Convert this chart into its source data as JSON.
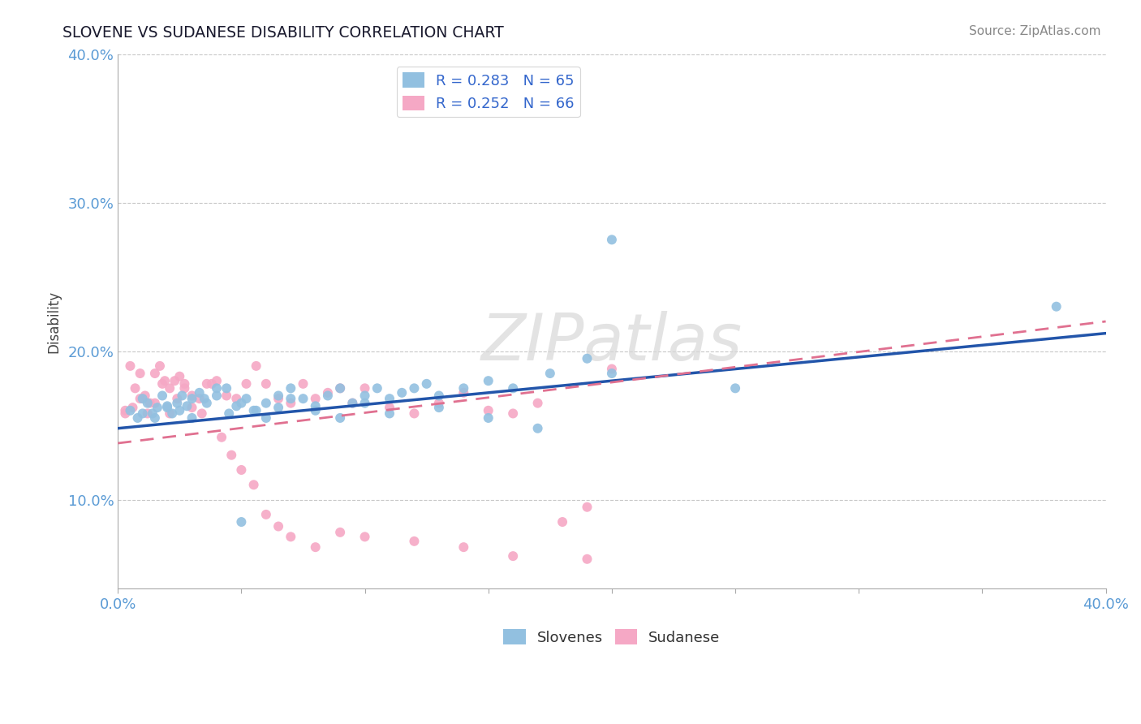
{
  "title": "SLOVENE VS SUDANESE DISABILITY CORRELATION CHART",
  "source_text": "Source: ZipAtlas.com",
  "ylabel": "Disability",
  "xlim": [
    0.0,
    0.4
  ],
  "ylim": [
    0.04,
    0.4
  ],
  "yticks": [
    0.1,
    0.2,
    0.3,
    0.4
  ],
  "ytick_labels": [
    "10.0%",
    "20.0%",
    "30.0%",
    "40.0%"
  ],
  "xtick_show": [
    0.0,
    0.4
  ],
  "xtick_labels": [
    "0.0%",
    "40.0%"
  ],
  "grid_color": "#c8c8c8",
  "background_color": "#ffffff",
  "slovene_color": "#92c0e0",
  "sudanese_color": "#f5a8c5",
  "slovene_line_color": "#2255aa",
  "sudanese_line_color": "#e07090",
  "R_slovene": 0.283,
  "N_slovene": 65,
  "R_sudanese": 0.252,
  "N_sudanese": 66,
  "watermark": "ZIPatlas",
  "slovene_x": [
    0.005,
    0.008,
    0.01,
    0.012,
    0.014,
    0.016,
    0.018,
    0.02,
    0.022,
    0.024,
    0.026,
    0.028,
    0.03,
    0.033,
    0.036,
    0.04,
    0.044,
    0.048,
    0.052,
    0.056,
    0.06,
    0.065,
    0.07,
    0.075,
    0.08,
    0.085,
    0.09,
    0.095,
    0.1,
    0.105,
    0.11,
    0.115,
    0.12,
    0.125,
    0.13,
    0.14,
    0.15,
    0.16,
    0.175,
    0.19,
    0.01,
    0.015,
    0.02,
    0.025,
    0.03,
    0.035,
    0.04,
    0.045,
    0.05,
    0.055,
    0.06,
    0.065,
    0.07,
    0.08,
    0.09,
    0.1,
    0.11,
    0.13,
    0.15,
    0.17,
    0.05,
    0.2,
    0.25,
    0.38,
    0.2
  ],
  "slovene_y": [
    0.16,
    0.155,
    0.168,
    0.165,
    0.158,
    0.162,
    0.17,
    0.163,
    0.158,
    0.165,
    0.17,
    0.163,
    0.168,
    0.172,
    0.165,
    0.17,
    0.175,
    0.163,
    0.168,
    0.16,
    0.165,
    0.17,
    0.175,
    0.168,
    0.163,
    0.17,
    0.175,
    0.165,
    0.17,
    0.175,
    0.168,
    0.172,
    0.175,
    0.178,
    0.17,
    0.175,
    0.18,
    0.175,
    0.185,
    0.195,
    0.158,
    0.155,
    0.162,
    0.16,
    0.155,
    0.168,
    0.175,
    0.158,
    0.165,
    0.16,
    0.155,
    0.162,
    0.168,
    0.16,
    0.155,
    0.165,
    0.158,
    0.162,
    0.155,
    0.148,
    0.085,
    0.185,
    0.175,
    0.23,
    0.275
  ],
  "sudanese_x": [
    0.003,
    0.005,
    0.007,
    0.009,
    0.011,
    0.013,
    0.015,
    0.017,
    0.019,
    0.021,
    0.023,
    0.025,
    0.027,
    0.03,
    0.033,
    0.036,
    0.04,
    0.044,
    0.048,
    0.052,
    0.056,
    0.06,
    0.065,
    0.07,
    0.075,
    0.08,
    0.085,
    0.09,
    0.095,
    0.1,
    0.11,
    0.12,
    0.13,
    0.14,
    0.15,
    0.16,
    0.17,
    0.18,
    0.19,
    0.2,
    0.003,
    0.006,
    0.009,
    0.012,
    0.015,
    0.018,
    0.021,
    0.024,
    0.027,
    0.03,
    0.034,
    0.038,
    0.042,
    0.046,
    0.05,
    0.055,
    0.06,
    0.065,
    0.07,
    0.08,
    0.09,
    0.1,
    0.12,
    0.14,
    0.16,
    0.19
  ],
  "sudanese_y": [
    0.16,
    0.19,
    0.175,
    0.185,
    0.17,
    0.165,
    0.185,
    0.19,
    0.18,
    0.175,
    0.18,
    0.183,
    0.175,
    0.17,
    0.168,
    0.178,
    0.18,
    0.17,
    0.168,
    0.178,
    0.19,
    0.178,
    0.168,
    0.165,
    0.178,
    0.168,
    0.172,
    0.175,
    0.165,
    0.175,
    0.162,
    0.158,
    0.165,
    0.172,
    0.16,
    0.158,
    0.165,
    0.085,
    0.095,
    0.188,
    0.158,
    0.162,
    0.168,
    0.158,
    0.165,
    0.178,
    0.158,
    0.168,
    0.178,
    0.162,
    0.158,
    0.178,
    0.142,
    0.13,
    0.12,
    0.11,
    0.09,
    0.082,
    0.075,
    0.068,
    0.078,
    0.075,
    0.072,
    0.068,
    0.062,
    0.06
  ],
  "slovene_line_x0": 0.0,
  "slovene_line_y0": 0.148,
  "slovene_line_x1": 0.4,
  "slovene_line_y1": 0.212,
  "sudanese_line_x0": 0.0,
  "sudanese_line_y0": 0.138,
  "sudanese_line_x1": 0.4,
  "sudanese_line_y1": 0.22
}
